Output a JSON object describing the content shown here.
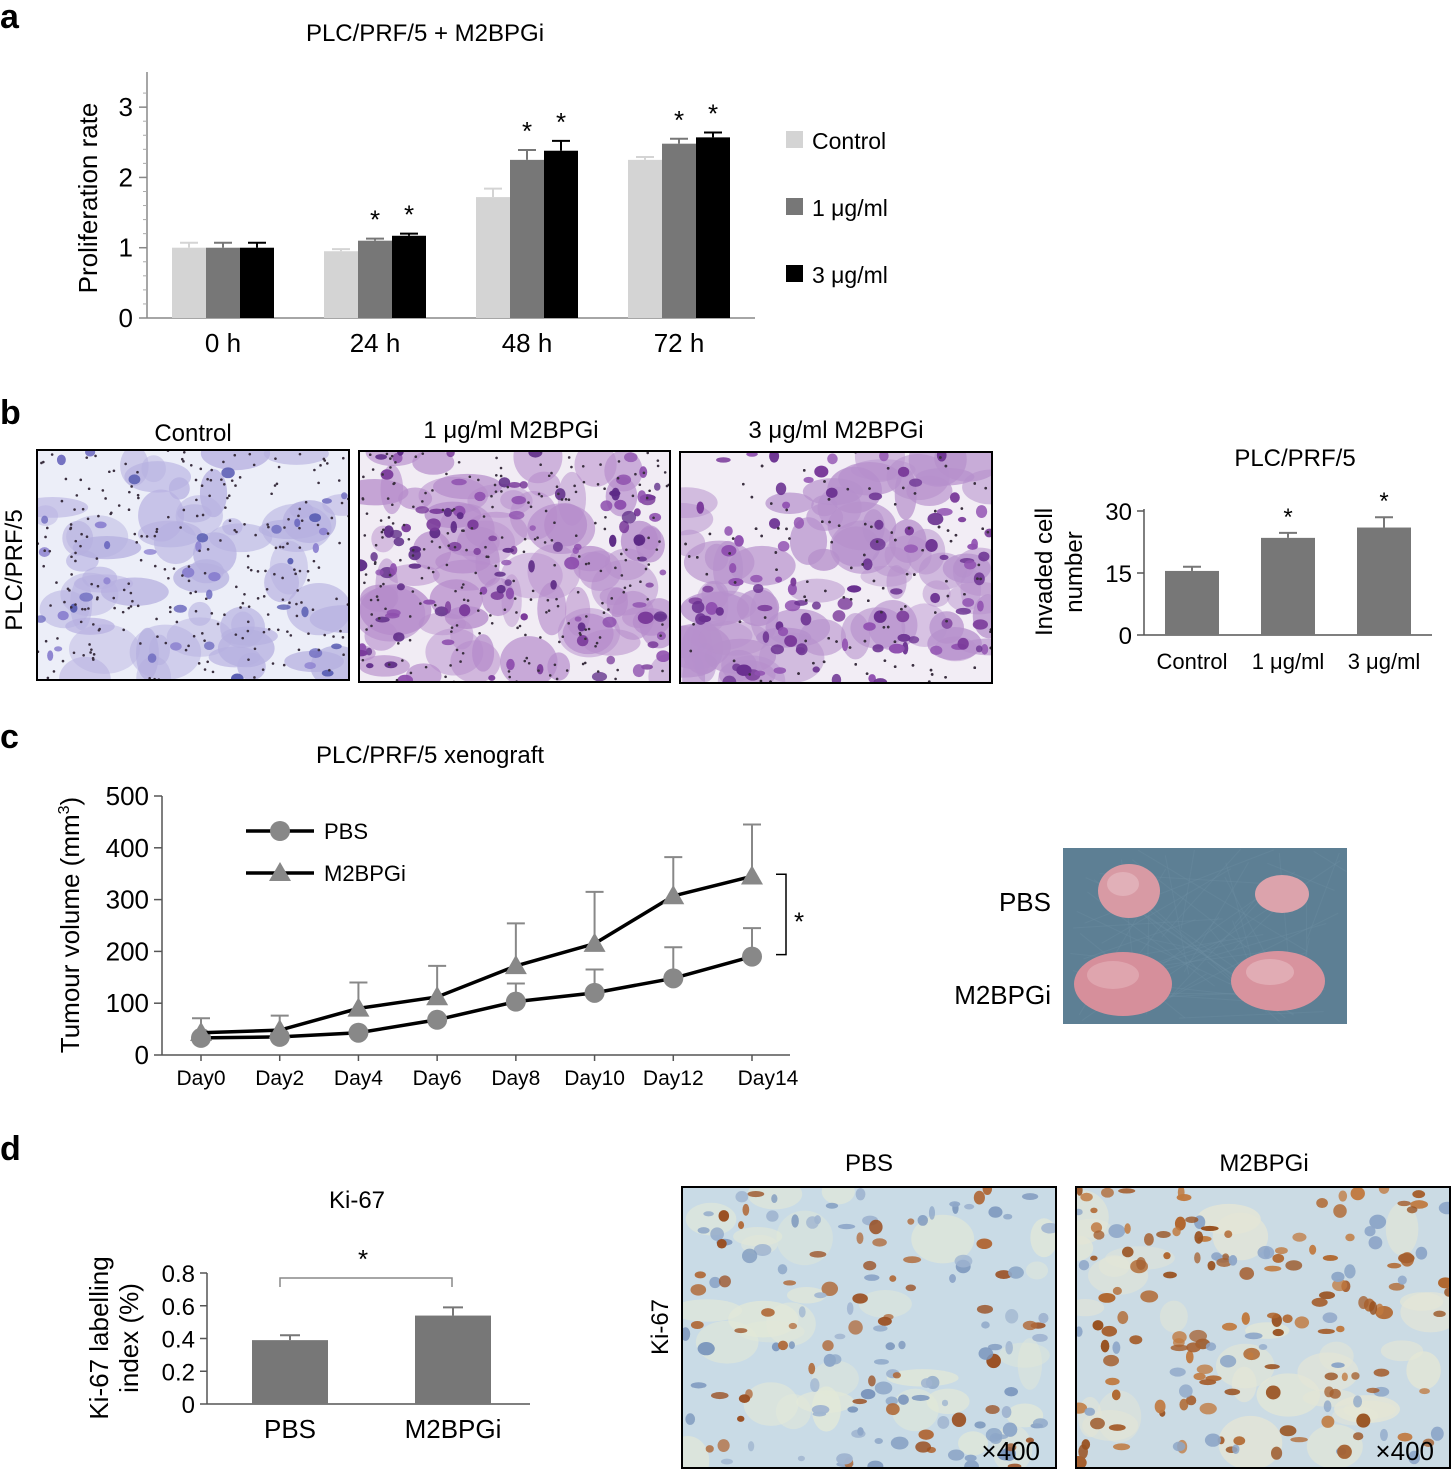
{
  "panel_a": {
    "letter": "a",
    "chart_data": {
      "type": "bar",
      "title": "PLC/PRF/5 + M2BPGi",
      "ylabel": "Proliferation rate",
      "xlabel": "",
      "categories": [
        "0 h",
        "24 h",
        "48 h",
        "72 h"
      ],
      "ylim": [
        0,
        3.5
      ],
      "yticks": [
        0,
        1,
        2,
        3
      ],
      "series": [
        {
          "name": "Control",
          "color": "#d4d4d4",
          "values": [
            1.0,
            0.95,
            1.72,
            2.25
          ],
          "errors": [
            0.07,
            0.03,
            0.12,
            0.04
          ]
        },
        {
          "name": "1 μg/ml",
          "color": "#777777",
          "values": [
            1.0,
            1.1,
            2.25,
            2.48
          ],
          "errors": [
            0.07,
            0.03,
            0.14,
            0.07
          ]
        },
        {
          "name": "3 μg/ml",
          "color": "#000000",
          "values": [
            1.0,
            1.17,
            2.38,
            2.57
          ],
          "errors": [
            0.07,
            0.03,
            0.14,
            0.07
          ]
        }
      ],
      "significance": [
        {
          "category": "24 h",
          "series": "1 μg/ml",
          "label": "*"
        },
        {
          "category": "24 h",
          "series": "3 μg/ml",
          "label": "*"
        },
        {
          "category": "48 h",
          "series": "1 μg/ml",
          "label": "*"
        },
        {
          "category": "48 h",
          "series": "3 μg/ml",
          "label": "*"
        },
        {
          "category": "72 h",
          "series": "1 μg/ml",
          "label": "*"
        },
        {
          "category": "72 h",
          "series": "3 μg/ml",
          "label": "*"
        }
      ],
      "legend": "right"
    }
  },
  "panel_b": {
    "letter": "b",
    "row_label": "PLC/PRF/5",
    "images": [
      {
        "label": "Control",
        "color": "#b6b0e0"
      },
      {
        "label": "1 μg/ml M2BPGi",
        "color": "#b68ccb"
      },
      {
        "label": "3 μg/ml M2BPGi",
        "color": "#b690cc"
      }
    ],
    "chart_data": {
      "type": "bar",
      "title": "PLC/PRF/5",
      "ylabel": "Invaded cell number",
      "xlabel": "",
      "categories": [
        "Control",
        "1 μg/ml",
        "3 μg/ml"
      ],
      "ylim": [
        0,
        30
      ],
      "yticks": [
        0,
        15,
        30
      ],
      "series": [
        {
          "name": "",
          "color": "#777777",
          "values": [
            15.5,
            23.5,
            26.0
          ],
          "errors": [
            1.0,
            1.2,
            2.5
          ]
        }
      ],
      "significance": [
        {
          "category": "1 μg/ml",
          "label": "*"
        },
        {
          "category": "3 μg/ml",
          "label": "*"
        }
      ]
    }
  },
  "panel_c": {
    "letter": "c",
    "chart_data": {
      "type": "line",
      "title": "PLC/PRF/5 xenograft",
      "ylabel": "Tumour volume (mm3)",
      "xlabel": "",
      "x": [
        "Day0",
        "Day2",
        "Day4",
        "Day6",
        "Day8",
        "Day10",
        "Day12",
        "Day14"
      ],
      "ylim": [
        0,
        500
      ],
      "yticks": [
        0,
        100,
        200,
        300,
        400,
        500
      ],
      "series": [
        {
          "name": "PBS",
          "marker": "circle",
          "values": [
            33,
            35,
            43,
            68,
            103,
            120,
            148,
            190
          ],
          "errors": [
            0,
            0,
            0,
            0,
            35,
            45,
            60,
            55
          ]
        },
        {
          "name": "M2BPGi",
          "marker": "triangle",
          "values": [
            43,
            48,
            90,
            112,
            172,
            215,
            307,
            345
          ],
          "errors": [
            28,
            28,
            50,
            60,
            82,
            100,
            75,
            100
          ]
        }
      ],
      "significance": [
        {
          "between": [
            "PBS",
            "M2BPGi"
          ],
          "at": "Day14",
          "label": "*"
        }
      ],
      "legend": "top-left"
    },
    "photo": {
      "labels": [
        "PBS",
        "M2BPGi"
      ],
      "background": "#5d7f94",
      "tissue": "#d89aa4"
    }
  },
  "panel_d": {
    "letter": "d",
    "chart_data": {
      "type": "bar",
      "title": "Ki-67",
      "ylabel": "Ki-67 labelling index (%)",
      "xlabel": "",
      "categories": [
        "PBS",
        "M2BPGi"
      ],
      "ylim": [
        0,
        0.8
      ],
      "yticks": [
        0,
        0.2,
        0.4,
        0.6,
        0.8
      ],
      "series": [
        {
          "name": "",
          "color": "#777777",
          "values": [
            0.39,
            0.54
          ],
          "errors": [
            0.03,
            0.05
          ]
        }
      ],
      "significance": [
        {
          "between": [
            "PBS",
            "M2BPGi"
          ],
          "label": "*"
        }
      ]
    },
    "row_label": "Ki-67",
    "images": [
      {
        "label": "PBS",
        "magnification": "×400"
      },
      {
        "label": "M2BPGi",
        "magnification": "×400"
      }
    ]
  }
}
